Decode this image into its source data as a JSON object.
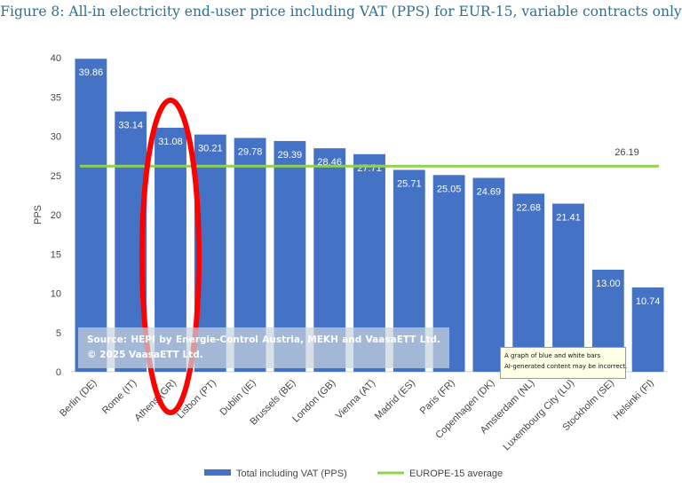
{
  "figure_title": "Figure 8: All-in electricity end-user price including VAT (PPS) for EUR-15, variable contracts only",
  "source_text": "Source: HEPI by Energie-Control Austria, MEKH and VaasaETT Ltd. © 2025 VaasaETT Ltd.",
  "ai_tooltip": {
    "line1": "A graph of blue and white bars",
    "line2": "AI-generated content may be incorrect."
  },
  "colors": {
    "bar": "#4472c4",
    "average_line": "#92d050",
    "highlight_ellipse": "#ff0000"
  },
  "chart_data": {
    "type": "bar",
    "categories": [
      "Berlin (DE)",
      "Rome (IT)",
      "Athens (GR)",
      "Lisbon (PT)",
      "Dublin (IE)",
      "Brussels (BE)",
      "London (GB)",
      "Vienna (AT)",
      "Madrid (ES)",
      "Paris (FR)",
      "Copenhagen (DK)",
      "Amsterdam (NL)",
      "Luxembourg City (LU)",
      "Stockholm (SE)",
      "Helsinki (FI)"
    ],
    "series": [
      {
        "name": "Total including VAT (PPS)",
        "values": [
          39.86,
          33.14,
          31.08,
          30.21,
          29.78,
          29.39,
          28.46,
          27.71,
          25.71,
          25.05,
          24.69,
          22.68,
          21.41,
          13.0,
          10.74
        ],
        "labels": [
          "39.86",
          "33.14",
          "31.08",
          "30.21",
          "29.78",
          "29.39",
          "28.46",
          "27.71",
          "25.71",
          "25.05",
          "24.69",
          "22.68",
          "21.41",
          "13.00",
          "10.74"
        ]
      }
    ],
    "average": {
      "name": "EUROPE-15 average",
      "value": 26.19,
      "label": "26.19"
    },
    "ylabel": "PPS",
    "xlabel": "",
    "ylim": [
      0,
      40
    ],
    "yticks": [
      "0",
      "5",
      "10",
      "15",
      "20",
      "25",
      "30",
      "35",
      "40"
    ],
    "grid": false,
    "legend_position": "bottom-center",
    "highlighted_category": "Athens (GR)"
  }
}
